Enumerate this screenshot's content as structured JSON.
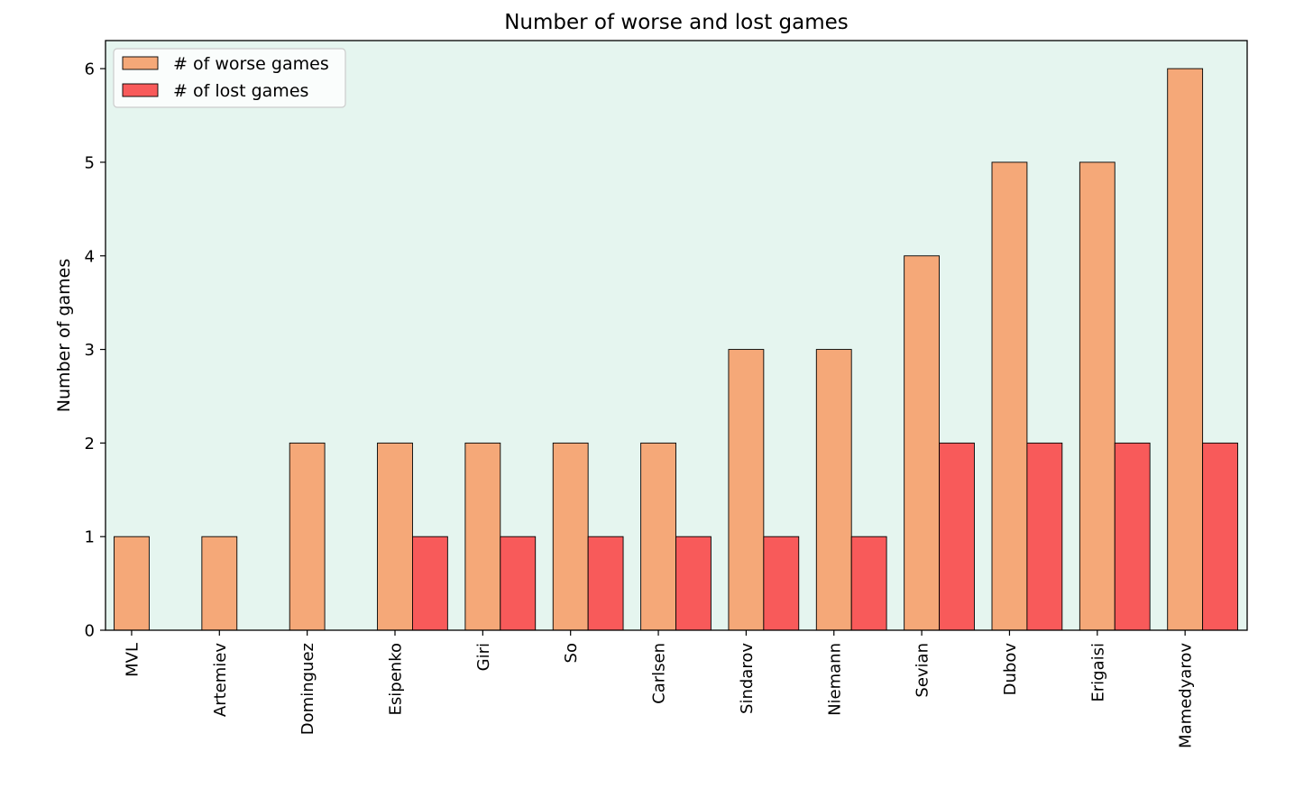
{
  "chart_data": {
    "type": "bar",
    "title": "Number of worse and lost games",
    "xlabel": "",
    "ylabel": "Number of games",
    "ylim": [
      0,
      6.3
    ],
    "yticks": [
      0,
      1,
      2,
      3,
      4,
      5,
      6
    ],
    "categories": [
      "MVL",
      "Artemiev",
      "Dominguez",
      "Esipenko",
      "Giri",
      "So",
      "Carlsen",
      "Sindarov",
      "Niemann",
      "Sevian",
      "Dubov",
      "Erigaisi",
      "Mamedyarov"
    ],
    "series": [
      {
        "name": "# of worse games",
        "color": "#f5a878",
        "values": [
          1,
          1,
          2,
          2,
          2,
          2,
          2,
          3,
          3,
          4,
          5,
          5,
          6
        ]
      },
      {
        "name": "# of lost games",
        "color": "#f85a5a",
        "values": [
          0,
          0,
          0,
          1,
          1,
          1,
          1,
          1,
          1,
          2,
          2,
          2,
          2
        ]
      }
    ],
    "legend_position": "top-left",
    "plot_background": "#e5f5ef",
    "grid": false
  }
}
